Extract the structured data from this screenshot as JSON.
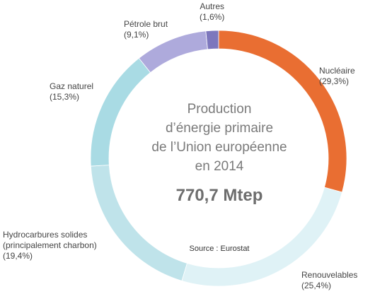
{
  "chart_data": {
    "type": "pie",
    "style": "donut",
    "title_lines": [
      "Production",
      "d’énergie primaire",
      "de l’Union européenne",
      "en 2014"
    ],
    "total_label": "770,7 Mtep",
    "source": "Source : Eurostat",
    "slices": [
      {
        "name": "Nucléaire",
        "value": 29.3,
        "value_label": "(29,3%)",
        "color": "#e96e32"
      },
      {
        "name": "Renouvelables",
        "value": 25.4,
        "value_label": "(25,4%)",
        "color": "#dff2f6"
      },
      {
        "name": "Hydrocarbures solides",
        "name_line2": "(principalement charbon)",
        "value": 19.4,
        "value_label": "(19,4%)",
        "color": "#bfe3ea"
      },
      {
        "name": "Gaz naturel",
        "value": 15.3,
        "value_label": "(15,3%)",
        "color": "#a9dbe4"
      },
      {
        "name": "Pétrole brut",
        "value": 9.1,
        "value_label": "(9,1%)",
        "color": "#aeaadc"
      },
      {
        "name": "Autres",
        "value": 1.6,
        "value_label": "(1,6%)",
        "color": "#7d77bd"
      }
    ]
  }
}
